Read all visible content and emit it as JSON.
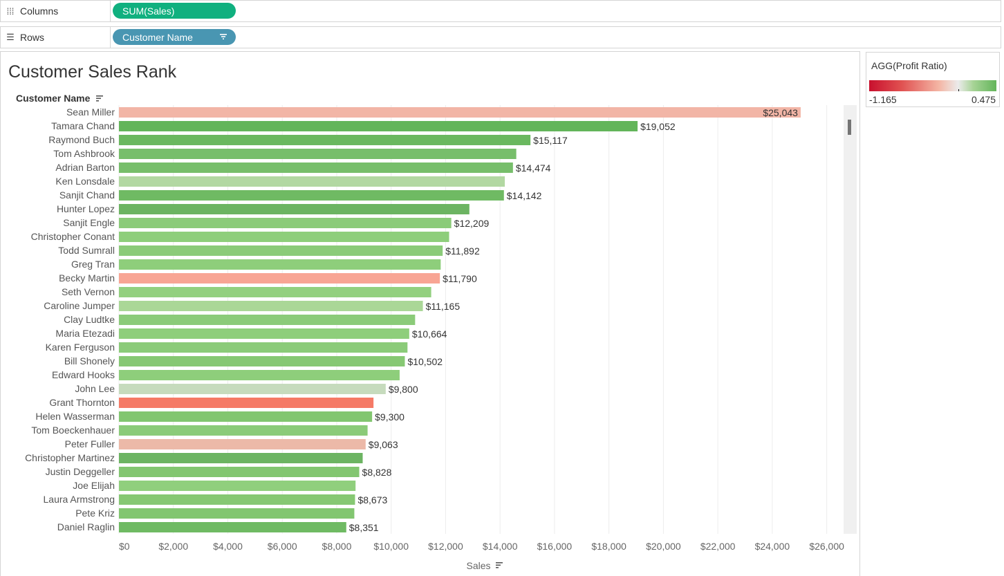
{
  "shelves": {
    "columns": {
      "label": "Columns",
      "pill": "SUM(Sales)"
    },
    "rows": {
      "label": "Rows",
      "pill": "Customer Name"
    }
  },
  "worksheet": {
    "title": "Customer Sales Rank"
  },
  "legend": {
    "title": "AGG(Profit Ratio)",
    "min": "-1.165",
    "max": "0.475"
  },
  "chart_data": {
    "type": "bar",
    "orientation": "horizontal",
    "title": "Customer Sales Rank",
    "row_header": "Customer Name",
    "xlabel": "Sales",
    "xlim": [
      0,
      26500
    ],
    "x_ticks": [
      "$0",
      "$2,000",
      "$4,000",
      "$6,000",
      "$8,000",
      "$10,000",
      "$12,000",
      "$14,000",
      "$16,000",
      "$18,000",
      "$20,000",
      "$22,000",
      "$24,000",
      "$26,000"
    ],
    "grid": true,
    "categories": [
      "Sean Miller",
      "Tamara Chand",
      "Raymond Buch",
      "Tom Ashbrook",
      "Adrian Barton",
      "Ken Lonsdale",
      "Sanjit Chand",
      "Hunter Lopez",
      "Sanjit Engle",
      "Christopher Conant",
      "Todd Sumrall",
      "Greg Tran",
      "Becky Martin",
      "Seth Vernon",
      "Caroline Jumper",
      "Clay Ludtke",
      "Maria Etezadi",
      "Karen Ferguson",
      "Bill Shonely",
      "Edward Hooks",
      "John Lee",
      "Grant Thornton",
      "Helen Wasserman",
      "Tom Boeckenhauer",
      "Peter Fuller",
      "Christopher Martinez",
      "Justin Deggeller",
      "Joe Elijah",
      "Laura Armstrong",
      "Pete Kriz",
      "Daniel Raglin"
    ],
    "values": [
      25043,
      19052,
      15117,
      14596,
      14474,
      14175,
      14142,
      12873,
      12209,
      12129,
      11892,
      11820,
      11790,
      11471,
      11165,
      10880,
      10664,
      10600,
      10502,
      10311,
      9800,
      9351,
      9300,
      9134,
      9063,
      8954,
      8828,
      8692,
      8673,
      8647,
      8351
    ],
    "data_labels": [
      "$25,043",
      "$19,052",
      "$15,117",
      "",
      "$14,474",
      "",
      "$14,142",
      "",
      "$12,209",
      "",
      "$11,892",
      "",
      "$11,790",
      "",
      "$11,165",
      "",
      "$10,664",
      "",
      "$10,502",
      "",
      "$9,800",
      "",
      "$9,300",
      "",
      "$9,063",
      "",
      "$8,828",
      "",
      "$8,673",
      "",
      "$8,351"
    ],
    "colors": [
      "#f2b5a6",
      "#63b55a",
      "#6ab85f",
      "#77be6b",
      "#77be6b",
      "#b2d8a2",
      "#6fba63",
      "#6cb462",
      "#8bcb79",
      "#8ece7b",
      "#8bcb79",
      "#8ece7b",
      "#f8a594",
      "#93d07f",
      "#aad797",
      "#8bcb79",
      "#8ece7b",
      "#8bcb79",
      "#86c873",
      "#8ece7b",
      "#c6dbbd",
      "#f57a66",
      "#82c670",
      "#8bcb79",
      "#ecb9a8",
      "#6cb462",
      "#82c670",
      "#90cf7d",
      "#86c873",
      "#82c670",
      "#6fba63"
    ]
  }
}
